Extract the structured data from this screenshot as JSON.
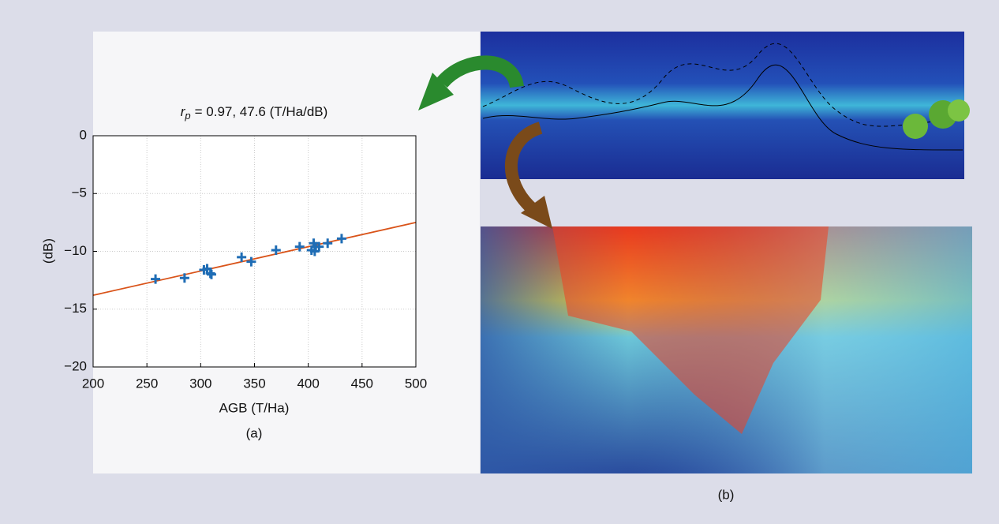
{
  "chart_data": {
    "type": "scatter",
    "title_symbol": "r",
    "title_subscript": "p",
    "title": "= 0.97, 47.6 (T/Ha/dB)",
    "x_label": "AGB (T/Ha)",
    "y_label": "(dB)",
    "caption": "(a)",
    "xlim": [
      200,
      500
    ],
    "ylim": [
      -20,
      0
    ],
    "xticks": [
      200,
      250,
      300,
      350,
      400,
      450,
      500
    ],
    "yticks": [
      0,
      {
        "value": -5,
        "label": "−5"
      },
      {
        "value": -10,
        "label": "−10"
      },
      {
        "value": -15,
        "label": "−15"
      },
      {
        "value": -20,
        "label": "−20"
      }
    ],
    "grid": true,
    "series": [
      {
        "type": "scatter",
        "color": "#1f6db5",
        "x": [
          258,
          285,
          303,
          306,
          309,
          310,
          338,
          347,
          370,
          392,
          403,
          405,
          406,
          407,
          410,
          418,
          431
        ],
        "values": [
          -12.4,
          -12.3,
          -11.6,
          -11.5,
          -11.9,
          -12.0,
          -10.5,
          -10.9,
          -9.9,
          -9.6,
          -9.9,
          -9.3,
          -10.0,
          -9.6,
          -9.6,
          -9.3,
          -8.9
        ]
      },
      {
        "type": "line",
        "color": "#d95319",
        "x": [
          200,
          500
        ],
        "values": [
          -13.8,
          -7.5
        ]
      }
    ]
  },
  "panel_b": {
    "caption": "(b)"
  }
}
